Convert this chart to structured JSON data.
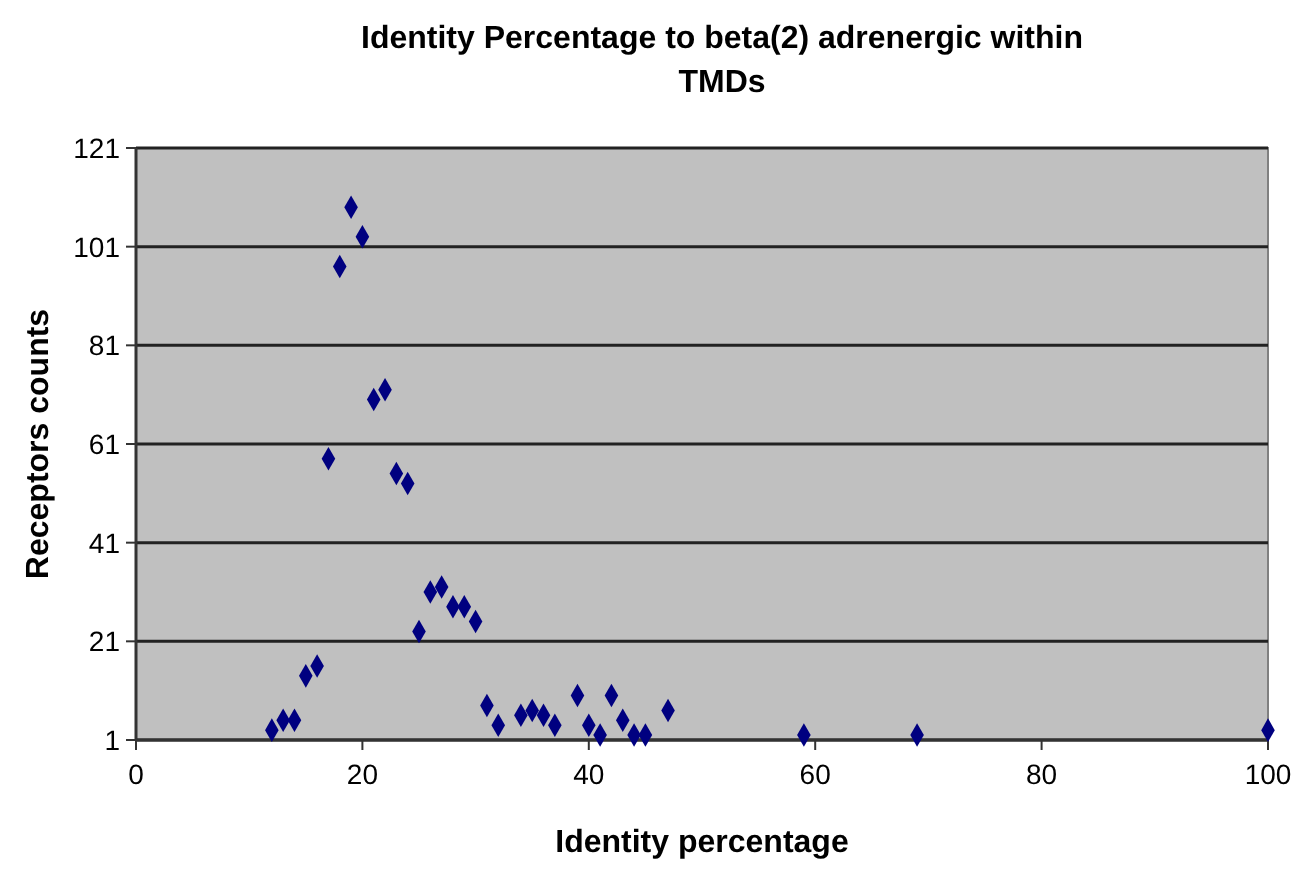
{
  "chart_data": {
    "type": "scatter",
    "title": "Identity Percentage to beta(2) adrenergic within TMDs",
    "xlabel": "Identity percentage",
    "ylabel": "Receptors counts",
    "x": [
      12,
      13,
      14,
      15,
      16,
      17,
      18,
      19,
      20,
      21,
      22,
      23,
      24,
      25,
      26,
      27,
      28,
      29,
      30,
      31,
      32,
      34,
      35,
      36,
      37,
      39,
      40,
      41,
      42,
      43,
      44,
      45,
      47,
      59,
      69,
      100
    ],
    "series": [
      {
        "color": "#000080",
        "values": [
          3,
          5,
          5,
          14,
          16,
          58,
          97,
          109,
          103,
          70,
          72,
          55,
          53,
          23,
          31,
          32,
          28,
          28,
          25,
          8,
          4,
          6,
          7,
          6,
          4,
          10,
          4,
          2,
          10,
          5,
          2,
          2,
          7,
          2,
          2,
          3
        ]
      }
    ],
    "xlim": [
      0,
      100
    ],
    "xticks": [
      0,
      20,
      40,
      60,
      80,
      100
    ],
    "ylim": [
      1,
      121
    ],
    "yticks": [
      1,
      21,
      41,
      61,
      81,
      101,
      121
    ],
    "grid": "y",
    "marker": "diamond"
  }
}
